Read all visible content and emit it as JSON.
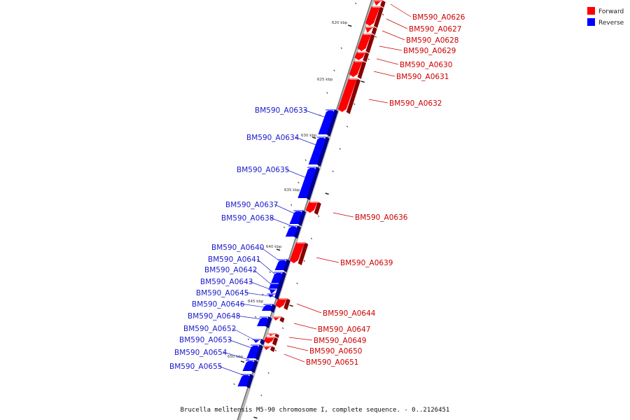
{
  "legend": [
    {
      "label": "Forward",
      "color": "#ff0000"
    },
    {
      "label": "Reverse",
      "color": "#0000ff"
    }
  ],
  "caption": "Brucella melitensis M5-90 chromosome I, complete sequence. - 0..2126451",
  "ticks": [
    "620 kbp",
    "625 kbp",
    "630 kbp",
    "635 kbp",
    "640 kbp",
    "645 kbp",
    "650 kbp"
  ],
  "genes": [
    {
      "name": "BM590_A0626",
      "strand": "forward"
    },
    {
      "name": "BM590_A0627",
      "strand": "forward"
    },
    {
      "name": "BM590_A0628",
      "strand": "forward"
    },
    {
      "name": "BM590_A0629",
      "strand": "forward"
    },
    {
      "name": "BM590_A0630",
      "strand": "forward"
    },
    {
      "name": "BM590_A0631",
      "strand": "forward"
    },
    {
      "name": "BM590_A0632",
      "strand": "forward"
    },
    {
      "name": "BM590_A0633",
      "strand": "reverse"
    },
    {
      "name": "BM590_A0634",
      "strand": "reverse"
    },
    {
      "name": "BM590_A0635",
      "strand": "reverse"
    },
    {
      "name": "BM590_A0636",
      "strand": "forward"
    },
    {
      "name": "BM590_A0637",
      "strand": "reverse"
    },
    {
      "name": "BM590_A0638",
      "strand": "reverse"
    },
    {
      "name": "BM590_A0639",
      "strand": "forward"
    },
    {
      "name": "BM590_A0640",
      "strand": "reverse"
    },
    {
      "name": "BM590_A0641",
      "strand": "reverse"
    },
    {
      "name": "BM590_A0642",
      "strand": "reverse"
    },
    {
      "name": "BM590_A0643",
      "strand": "reverse"
    },
    {
      "name": "BM590_A0644",
      "strand": "forward"
    },
    {
      "name": "BM590_A0645",
      "strand": "reverse"
    },
    {
      "name": "BM590_A0646",
      "strand": "reverse"
    },
    {
      "name": "BM590_A0647",
      "strand": "forward"
    },
    {
      "name": "BM590_A0648",
      "strand": "reverse"
    },
    {
      "name": "BM590_A0649",
      "strand": "forward"
    },
    {
      "name": "BM590_A0650",
      "strand": "forward"
    },
    {
      "name": "BM590_A0651",
      "strand": "forward"
    },
    {
      "name": "BM590_A0652",
      "strand": "reverse"
    },
    {
      "name": "BM590_A0653",
      "strand": "reverse"
    },
    {
      "name": "BM590_A0654",
      "strand": "reverse"
    },
    {
      "name": "BM590_A0655",
      "strand": "reverse"
    }
  ]
}
